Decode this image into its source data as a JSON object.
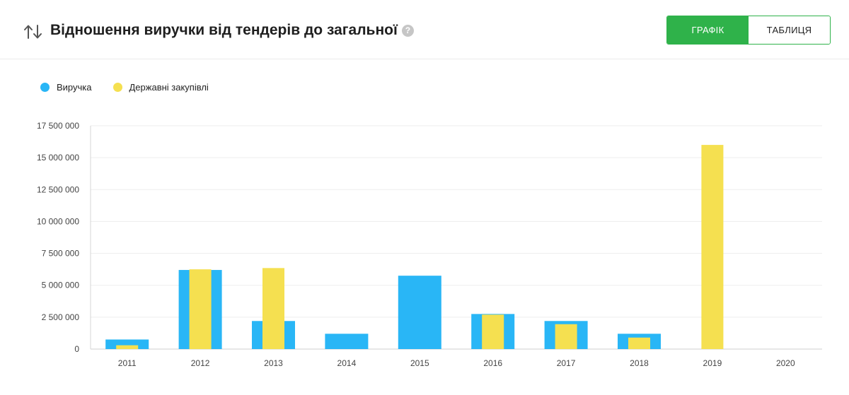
{
  "header": {
    "title": "Відношення виручки від тендерів до загальної",
    "help_symbol": "?",
    "sort_icon": "sort-arrows-icon",
    "toggle": {
      "chart_label": "ГРАФІК",
      "table_label": "ТАБЛИЦЯ",
      "active": "chart"
    }
  },
  "colors": {
    "accent": "#2fb24a",
    "revenue": "#29b6f6",
    "procurement": "#f5e050"
  },
  "chart_data": {
    "type": "bar",
    "title": "",
    "xlabel": "",
    "ylabel": "",
    "categories": [
      "2011",
      "2012",
      "2013",
      "2014",
      "2015",
      "2016",
      "2017",
      "2018",
      "2019",
      "2020"
    ],
    "series": [
      {
        "name": "Виручка",
        "color": "#29b6f6",
        "values": [
          750000,
          6200000,
          2200000,
          1200000,
          5750000,
          2750000,
          2200000,
          1200000,
          0,
          0
        ]
      },
      {
        "name": "Державні закупівлі",
        "color": "#f5e050",
        "values": [
          300000,
          6250000,
          6350000,
          0,
          0,
          2700000,
          1950000,
          900000,
          16000000,
          0
        ]
      }
    ],
    "ylim": [
      0,
      17500000
    ],
    "yticks": [
      0,
      2500000,
      5000000,
      7500000,
      10000000,
      12500000,
      15000000,
      17500000
    ],
    "ytick_labels": [
      "0",
      "2 500 000",
      "5 000 000",
      "7 500 000",
      "10 000 000",
      "12 500 000",
      "15 000 000",
      "17 500 000"
    ],
    "grid": true,
    "legend_position": "top-left",
    "overlay": true
  }
}
